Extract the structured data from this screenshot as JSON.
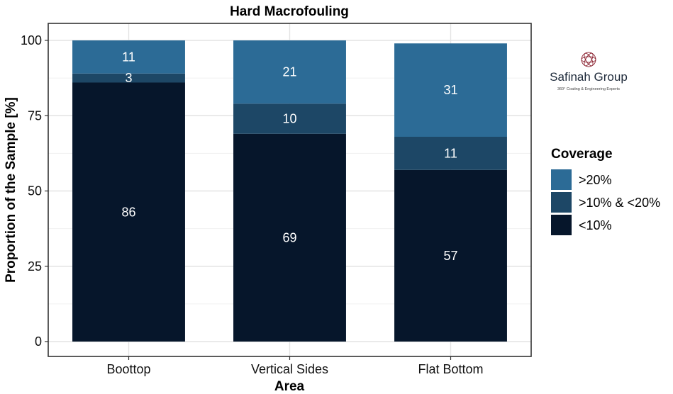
{
  "chart_data": {
    "type": "bar",
    "stacked": true,
    "title": "Hard Macrofouling",
    "xlabel": "Area",
    "ylabel": "Proportion of the Sample [%]",
    "ylim": [
      0,
      100
    ],
    "yticks": [
      0,
      25,
      50,
      75,
      100
    ],
    "grid": true,
    "categories": [
      "Boottop",
      "Vertical Sides",
      "Flat Bottom"
    ],
    "series": [
      {
        "name": "<10%",
        "values": [
          86,
          69,
          57
        ],
        "color": "#06162b"
      },
      {
        "name": ">10% & <20%",
        "values": [
          3,
          10,
          11
        ],
        "color": "#1d4766"
      },
      {
        "name": ">20%",
        "values": [
          11,
          21,
          31
        ],
        "color": "#2c6b96"
      }
    ],
    "legend": {
      "title": "Coverage",
      "position": "right",
      "order": [
        ">20%",
        ">10% & <20%",
        "<10%"
      ]
    }
  },
  "logo": {
    "name": "Safinah Group",
    "tagline": "360° Coating & Engineering Experts"
  }
}
